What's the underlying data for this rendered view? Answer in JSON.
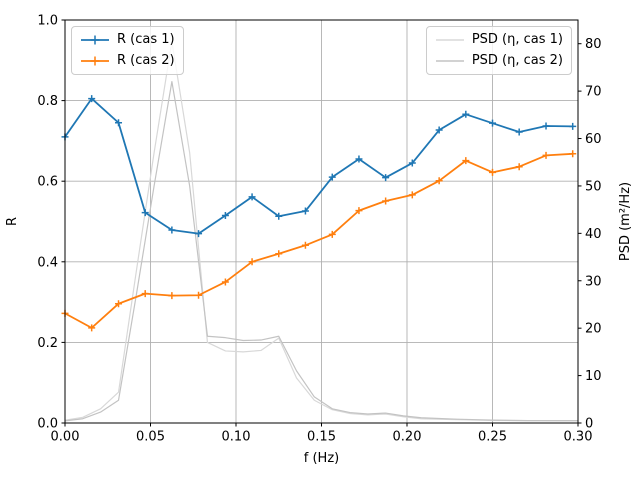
{
  "chart_data": {
    "type": "line",
    "title": "",
    "xlabel": "f (Hz)",
    "ylabel_left": "R",
    "ylabel_right": "PSD (m²/Hz)",
    "xlim": [
      0.0,
      0.3
    ],
    "ylim_left": [
      0.0,
      1.0
    ],
    "ylim_right": [
      0,
      85
    ],
    "xticks": [
      "0.00",
      "0.05",
      "0.10",
      "0.15",
      "0.20",
      "0.25",
      "0.30"
    ],
    "yticks_left": [
      "0.0",
      "0.2",
      "0.4",
      "0.6",
      "0.8",
      "1.0"
    ],
    "yticks_right": [
      "0",
      "10",
      "20",
      "30",
      "40",
      "50",
      "60",
      "70",
      "80"
    ],
    "grid": true,
    "grid_color": "#b0b0b0",
    "background_color": "#ffffff",
    "spine_color": "#000000",
    "series": [
      {
        "name": "R (cas 1)",
        "axis": "left",
        "color": "#1f77b4",
        "marker": "+",
        "line_width": 1.8,
        "x": [
          0.0,
          0.0156,
          0.0313,
          0.0469,
          0.0625,
          0.0781,
          0.0938,
          0.1094,
          0.125,
          0.1406,
          0.1563,
          0.1719,
          0.1875,
          0.2031,
          0.2188,
          0.2344,
          0.25,
          0.2656,
          0.2813,
          0.2969
        ],
        "values": [
          0.71,
          0.805,
          0.745,
          0.522,
          0.479,
          0.47,
          0.515,
          0.561,
          0.513,
          0.526,
          0.61,
          0.655,
          0.609,
          0.645,
          0.727,
          0.766,
          0.744,
          0.722,
          0.737,
          0.736
        ]
      },
      {
        "name": "R (cas 2)",
        "axis": "left",
        "color": "#ff7f0e",
        "marker": "+",
        "line_width": 1.8,
        "x": [
          0.0,
          0.0156,
          0.0313,
          0.0469,
          0.0625,
          0.0781,
          0.0938,
          0.1094,
          0.125,
          0.1406,
          0.1563,
          0.1719,
          0.1875,
          0.2031,
          0.2188,
          0.2344,
          0.25,
          0.2656,
          0.2813,
          0.2969
        ],
        "values": [
          0.272,
          0.236,
          0.296,
          0.321,
          0.316,
          0.317,
          0.35,
          0.4,
          0.42,
          0.441,
          0.468,
          0.527,
          0.551,
          0.566,
          0.601,
          0.651,
          0.622,
          0.636,
          0.664,
          0.668
        ]
      },
      {
        "name": "PSD (η, cas 1)",
        "axis": "right",
        "color": "#d8d8d8",
        "marker": null,
        "line_width": 1.2,
        "x": [
          0.0,
          0.0104,
          0.0208,
          0.0313,
          0.0417,
          0.0521,
          0.0625,
          0.0729,
          0.0833,
          0.0938,
          0.1042,
          0.1146,
          0.125,
          0.1354,
          0.1458,
          0.1563,
          0.1667,
          0.1771,
          0.1875,
          0.1979,
          0.2083,
          0.2292,
          0.25,
          0.2708,
          0.2917,
          0.3
        ],
        "values": [
          0.6,
          1.2,
          3.0,
          6.5,
          32,
          57,
          80.5,
          57,
          17.0,
          15.2,
          15.0,
          15.3,
          17.9,
          9.5,
          4.8,
          2.8,
          2.0,
          1.7,
          1.9,
          1.3,
          0.9,
          0.7,
          0.55,
          0.5,
          0.45,
          0.45
        ]
      },
      {
        "name": "PSD (η, cas 2)",
        "axis": "right",
        "color": "#c3c3c3",
        "marker": null,
        "line_width": 1.2,
        "x": [
          0.0,
          0.0104,
          0.0208,
          0.0313,
          0.0417,
          0.0521,
          0.0625,
          0.0729,
          0.0833,
          0.0938,
          0.1042,
          0.1146,
          0.125,
          0.1354,
          0.1458,
          0.1563,
          0.1667,
          0.1771,
          0.1875,
          0.1979,
          0.2083,
          0.2292,
          0.25,
          0.2708,
          0.2917,
          0.3
        ],
        "values": [
          0.45,
          0.9,
          2.3,
          4.8,
          27,
          50,
          72.0,
          50,
          18.3,
          18.0,
          17.4,
          17.5,
          18.3,
          11.0,
          5.5,
          3.0,
          2.2,
          1.9,
          2.1,
          1.5,
          1.1,
          0.8,
          0.6,
          0.5,
          0.5,
          0.5
        ]
      }
    ],
    "legends": [
      {
        "position": "upper-left",
        "entries": [
          0,
          1
        ]
      },
      {
        "position": "upper-right",
        "entries": [
          2,
          3
        ]
      }
    ]
  }
}
